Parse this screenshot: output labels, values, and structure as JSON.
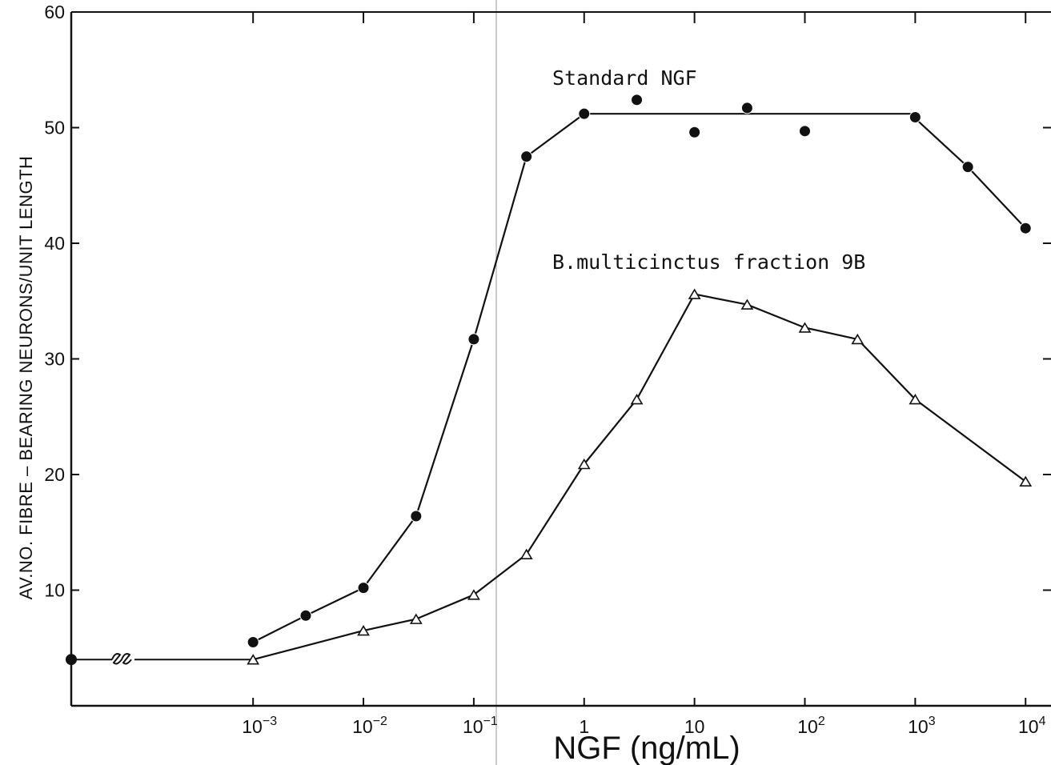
{
  "chart_data": {
    "type": "line",
    "title": "",
    "xlabel": "NGF (ng/mL)",
    "ylabel": "AV.NO. FIBRE – BEARING NEURONS/UNIT LENGTH",
    "x_scale": "log",
    "xlim": [
      2.25e-05,
      17000
    ],
    "ylim": [
      0,
      60
    ],
    "grid": false,
    "x_ticks": [
      {
        "value": 0.001,
        "base": "10",
        "exp": "−3"
      },
      {
        "value": 0.01,
        "base": "10",
        "exp": "−2"
      },
      {
        "value": 0.1,
        "base": "10",
        "exp": "−1"
      },
      {
        "value": 1,
        "base": "1",
        "exp": ""
      },
      {
        "value": 10,
        "base": "10",
        "exp": ""
      },
      {
        "value": 100,
        "base": "10",
        "exp": "2"
      },
      {
        "value": 1000,
        "base": "10",
        "exp": "3"
      },
      {
        "value": 10000,
        "base": "10",
        "exp": "4"
      }
    ],
    "y_ticks": [
      {
        "value": 10,
        "label": "10"
      },
      {
        "value": 20,
        "label": "20"
      },
      {
        "value": 30,
        "label": "30"
      },
      {
        "value": 40,
        "label": "40"
      },
      {
        "value": 50,
        "label": "50"
      },
      {
        "value": 60,
        "label": "60"
      }
    ],
    "baseline": {
      "y": 4,
      "break_symbol": "~22~"
    },
    "series": [
      {
        "name": "Standard NGF",
        "marker": "filled-circle",
        "color": "#111111",
        "points": [
          {
            "x": 0.001,
            "y": 5.5
          },
          {
            "x": 0.003,
            "y": 7.8
          },
          {
            "x": 0.01,
            "y": 10.2
          },
          {
            "x": 0.03,
            "y": 16.4
          },
          {
            "x": 0.1,
            "y": 31.7
          },
          {
            "x": 0.3,
            "y": 47.5
          },
          {
            "x": 1,
            "y": 51.2
          },
          {
            "x": 3,
            "y": 52.4
          },
          {
            "x": 10,
            "y": 49.6
          },
          {
            "x": 30,
            "y": 51.7
          },
          {
            "x": 100,
            "y": 49.7
          },
          {
            "x": 1000,
            "y": 50.9
          },
          {
            "x": 3000,
            "y": 46.6
          },
          {
            "x": 10000,
            "y": 41.3
          }
        ],
        "line": [
          {
            "x": 0.001,
            "y": 5.5
          },
          {
            "x": 0.003,
            "y": 7.8
          },
          {
            "x": 0.01,
            "y": 10.2
          },
          {
            "x": 0.03,
            "y": 16.4
          },
          {
            "x": 0.1,
            "y": 31.7
          },
          {
            "x": 0.3,
            "y": 47.5
          },
          {
            "x": 1,
            "y": 51.2
          },
          {
            "x": 900,
            "y": 51.2
          },
          {
            "x": 3000,
            "y": 46.6
          },
          {
            "x": 10000,
            "y": 41.3
          }
        ]
      },
      {
        "name": "B.multicinctus fraction 9B",
        "marker": "open-triangle",
        "color": "#111111",
        "points": [
          {
            "x": 0.001,
            "y": 4.0
          },
          {
            "x": 0.01,
            "y": 6.5
          },
          {
            "x": 0.03,
            "y": 7.5
          },
          {
            "x": 0.1,
            "y": 9.6
          },
          {
            "x": 0.3,
            "y": 13.1
          },
          {
            "x": 1,
            "y": 20.9
          },
          {
            "x": 3,
            "y": 26.5
          },
          {
            "x": 10,
            "y": 35.6
          },
          {
            "x": 30,
            "y": 34.7
          },
          {
            "x": 100,
            "y": 32.7
          },
          {
            "x": 300,
            "y": 31.7
          },
          {
            "x": 1000,
            "y": 26.5
          },
          {
            "x": 10000,
            "y": 19.4
          }
        ]
      }
    ],
    "annotations": [
      {
        "text": "Standard NGF",
        "series": 0
      },
      {
        "text": "B.multicinctus fraction 9B",
        "series": 1
      }
    ]
  }
}
